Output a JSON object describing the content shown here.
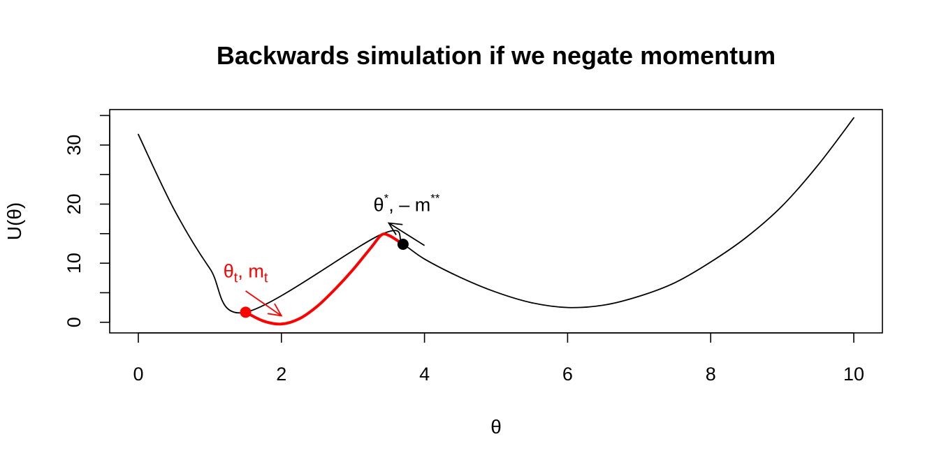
{
  "chart_data": {
    "type": "line",
    "title": "Backwards simulation if we negate momentum",
    "xlabel": "θ",
    "ylabel": "U(θ)",
    "xlim": [
      -0.4,
      10.4
    ],
    "ylim": [
      -1.8,
      36.0
    ],
    "x_ticks": [
      0,
      2,
      4,
      6,
      8,
      10
    ],
    "y_ticks": [
      0,
      10,
      20,
      30
    ],
    "y_minor_ticks": [
      5,
      15,
      25,
      35
    ],
    "grid": false,
    "series": [
      {
        "color": "#000000",
        "points": [
          [
            0,
            31.8
          ],
          [
            0.5,
            19.1
          ],
          [
            1.0,
            9.1
          ],
          [
            1.5,
            1.7
          ],
          [
            3.4,
            14.9
          ],
          [
            3.7,
            13.2
          ],
          [
            4.0,
            10.7
          ],
          [
            4.5,
            7.6
          ],
          [
            5.0,
            5.1
          ],
          [
            5.5,
            3.3
          ],
          [
            6.0,
            2.5
          ],
          [
            6.5,
            2.9
          ],
          [
            7.0,
            4.4
          ],
          [
            7.5,
            6.7
          ],
          [
            8.0,
            10.2
          ],
          [
            8.5,
            14.4
          ],
          [
            9.0,
            19.7
          ],
          [
            9.5,
            26.6
          ],
          [
            10.0,
            34.6
          ]
        ]
      },
      {
        "color": "#ff0000",
        "points": [
          [
            1.5,
            1.7
          ],
          [
            1.75,
            0.2
          ],
          [
            2.0,
            -0.3
          ],
          [
            2.25,
            0.6
          ],
          [
            2.5,
            2.7
          ],
          [
            2.75,
            5.6
          ],
          [
            3.0,
            8.9
          ],
          [
            3.25,
            12.6
          ],
          [
            3.4,
            14.8
          ],
          [
            3.5,
            14.7
          ],
          [
            3.6,
            14.0
          ],
          [
            3.7,
            13.2
          ]
        ]
      }
    ],
    "annotations": [
      {
        "id": "start",
        "color": "#ff0000",
        "point": [
          1.5,
          1.7
        ],
        "arrow": {
          "from": [
            1.5,
            5.3
          ],
          "to": [
            2.0,
            1.1
          ]
        },
        "label_base": [
          "θ",
          "t",
          ", m",
          "t"
        ],
        "label_at": [
          1.5,
          7.6
        ]
      },
      {
        "id": "end",
        "color": "#000000",
        "point": [
          3.7,
          13.2
        ],
        "arrow": {
          "from": [
            4.0,
            13.0
          ],
          "to": [
            3.5,
            16.8
          ]
        },
        "label_base": [
          "θ",
          "*",
          ", – m",
          "**"
        ],
        "label_at": [
          3.75,
          18.8
        ]
      }
    ]
  }
}
